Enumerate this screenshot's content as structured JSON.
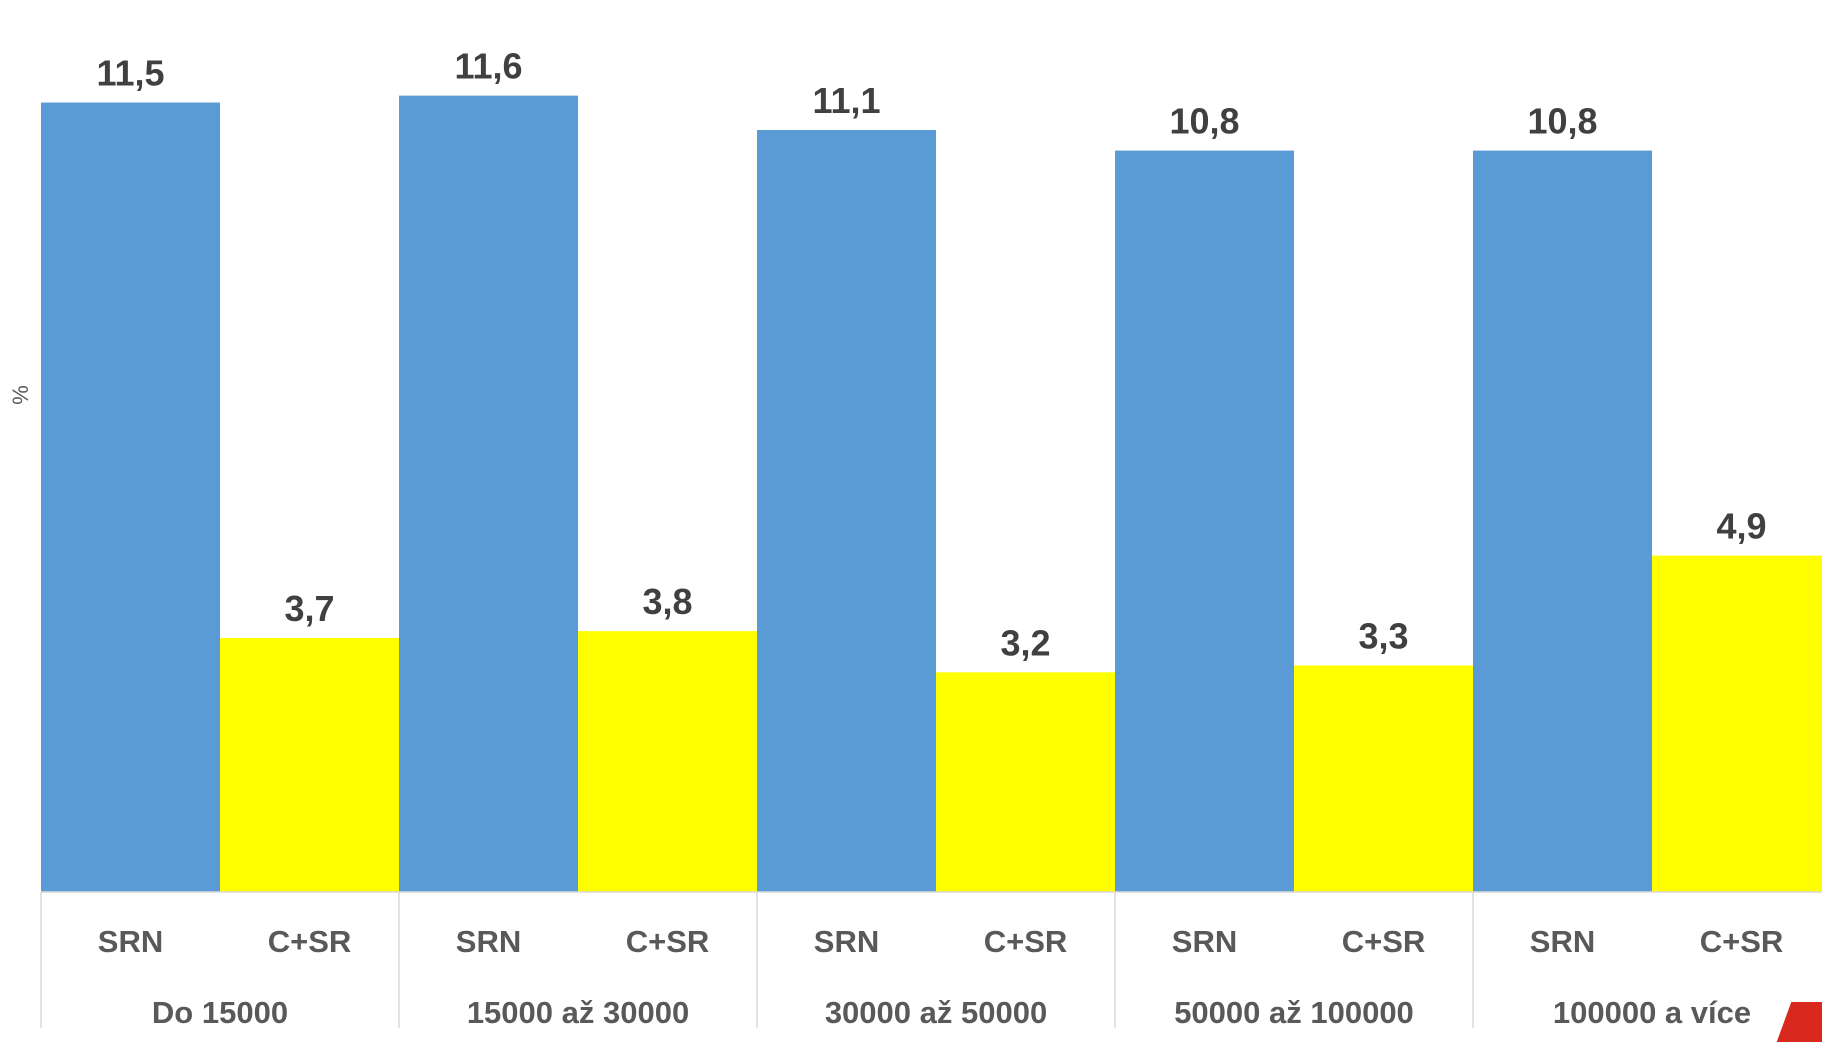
{
  "chart_data": {
    "type": "bar",
    "ylabel": "%",
    "ylim": [
      0,
      12.6
    ],
    "groups": [
      {
        "label": "Do 15000",
        "bars": [
          {
            "category": "SRN",
            "value": 11.5,
            "label": "11,5"
          },
          {
            "category": "C+SR",
            "value": 3.7,
            "label": "3,7"
          }
        ]
      },
      {
        "label": "15000 až 30000",
        "bars": [
          {
            "category": "SRN",
            "value": 11.6,
            "label": "11,6"
          },
          {
            "category": "C+SR",
            "value": 3.8,
            "label": "3,8"
          }
        ]
      },
      {
        "label": "30000 až 50000",
        "bars": [
          {
            "category": "SRN",
            "value": 11.1,
            "label": "11,1"
          },
          {
            "category": "C+SR",
            "value": 3.2,
            "label": "3,2"
          }
        ]
      },
      {
        "label": "50000 až 100000",
        "bars": [
          {
            "category": "SRN",
            "value": 10.8,
            "label": "10,8"
          },
          {
            "category": "C+SR",
            "value": 3.3,
            "label": "3,3"
          }
        ]
      },
      {
        "label": "100000 a více",
        "bars": [
          {
            "category": "SRN",
            "value": 10.8,
            "label": "10,8"
          },
          {
            "category": "C+SR",
            "value": 4.9,
            "label": "4,9"
          }
        ]
      }
    ],
    "colors": {
      "SRN": "#5b9bd5",
      "C+SR": "#ffff00"
    },
    "grid": false,
    "legend": "none"
  }
}
